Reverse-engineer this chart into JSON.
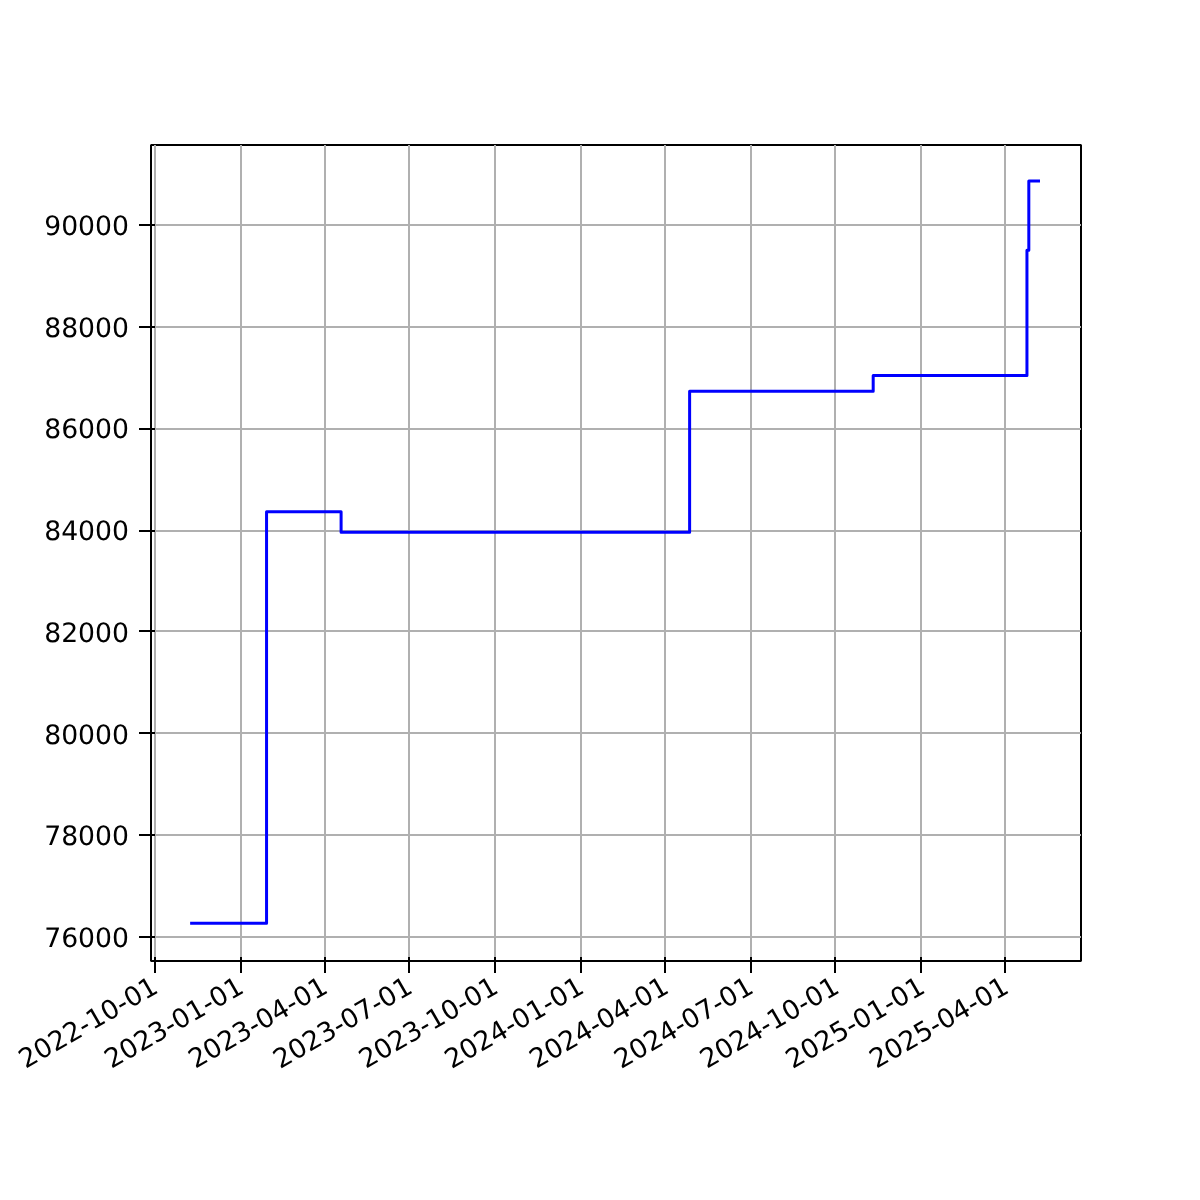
{
  "chart_data": {
    "type": "step",
    "x": [
      "2022-11-08",
      "2023-01-29",
      "2023-04-19",
      "2024-04-27",
      "2024-11-10",
      "2025-04-24",
      "2025-04-26",
      "2025-05-08"
    ],
    "series": [
      {
        "color": "#0000ff",
        "values": [
          76270,
          84360,
          83960,
          86730,
          87040,
          89500,
          90860,
          90860
        ]
      }
    ],
    "xlim": [
      "2022-09-27",
      "2025-06-21"
    ],
    "xticks": [
      "2022-10-01",
      "2023-01-01",
      "2023-04-01",
      "2023-07-01",
      "2023-10-01",
      "2024-01-01",
      "2024-04-01",
      "2024-07-01",
      "2024-10-01",
      "2025-01-01",
      "2025-04-01"
    ],
    "ylim": [
      75530,
      91570
    ],
    "yticks": [
      76000,
      78000,
      80000,
      82000,
      84000,
      86000,
      88000,
      90000
    ],
    "grid": true
  }
}
